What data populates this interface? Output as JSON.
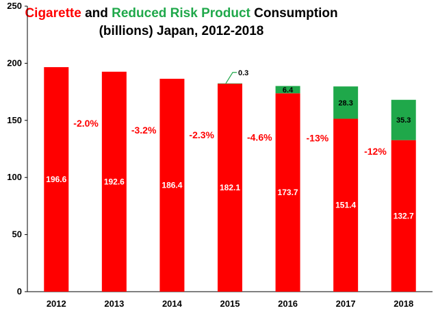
{
  "chart_data": {
    "type": "bar",
    "stacked": true,
    "title_parts": [
      {
        "text": "Cigarette",
        "color": "#ff0000"
      },
      {
        "text": " and ",
        "color": "#000000"
      },
      {
        "text": "Reduced Risk Product",
        "color": "#1fa84a"
      },
      {
        "text": " Consumption",
        "color": "#000000"
      }
    ],
    "title_line2": "(billions) Japan, 2012-2018",
    "categories": [
      "2012",
      "2013",
      "2014",
      "2015",
      "2016",
      "2017",
      "2018"
    ],
    "series": [
      {
        "values": [
          196.6,
          192.6,
          186.4,
          182.1,
          173.7,
          151.4,
          132.7
        ],
        "color": "#ff0000"
      },
      {
        "values": [
          0,
          0,
          0,
          0.3,
          6.4,
          28.3,
          35.3
        ],
        "color": "#1fa84a"
      }
    ],
    "cig_labels": [
      "196.6",
      "192.6",
      "186.4",
      "182.1",
      "173.7",
      "151.4",
      "132.7"
    ],
    "rrp_labels": [
      "",
      "",
      "",
      "0.3",
      "6.4",
      "28.3",
      "35.3"
    ],
    "changes": [
      "-2.0%",
      "-3.2%",
      "-2.3%",
      "-4.6%",
      "-13%",
      "-12%"
    ],
    "ylim": [
      0,
      250
    ],
    "yticks": [
      0,
      50,
      100,
      150,
      200,
      250
    ],
    "grid": false,
    "legend": "none"
  }
}
